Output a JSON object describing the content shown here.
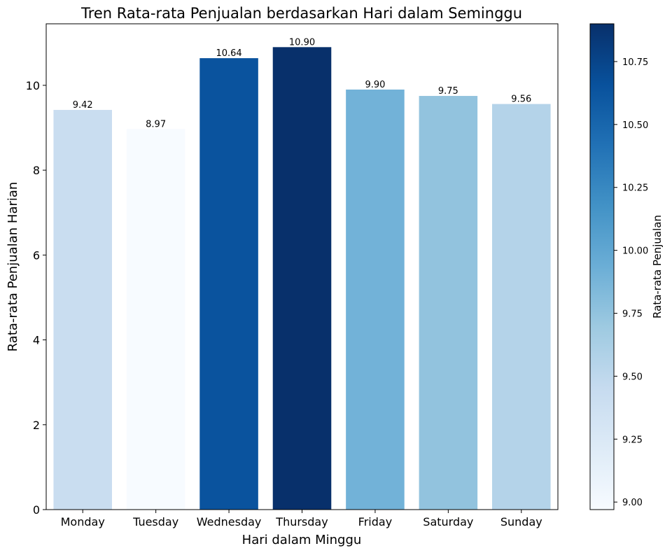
{
  "chart_data": {
    "type": "bar",
    "title": "Tren Rata-rata Penjualan berdasarkan Hari dalam Seminggu",
    "xlabel": "Hari dalam Minggu",
    "ylabel": "Rata-rata Penjualan Harian",
    "categories": [
      "Monday",
      "Tuesday",
      "Wednesday",
      "Thursday",
      "Friday",
      "Saturday",
      "Sunday"
    ],
    "values": [
      9.42,
      8.97,
      10.64,
      10.9,
      9.9,
      9.75,
      9.56
    ],
    "value_labels": [
      "9.42",
      "8.97",
      "10.64",
      "10.90",
      "9.90",
      "9.75",
      "9.56"
    ],
    "ylim": [
      0,
      11.45
    ],
    "yticks": [
      0,
      2,
      4,
      6,
      8,
      10
    ],
    "grid": false,
    "colormap": "Blues",
    "colorbar": {
      "label": "Rata-rata Penjualan",
      "range": [
        8.97,
        10.9
      ],
      "ticks": [
        "9.00",
        "9.25",
        "9.50",
        "9.75",
        "10.00",
        "10.25",
        "10.50",
        "10.75"
      ],
      "tick_values": [
        9.0,
        9.25,
        9.5,
        9.75,
        10.0,
        10.25,
        10.5,
        10.75
      ]
    },
    "colors": {
      "low": "#f7fbff",
      "high": "#08306b"
    }
  }
}
